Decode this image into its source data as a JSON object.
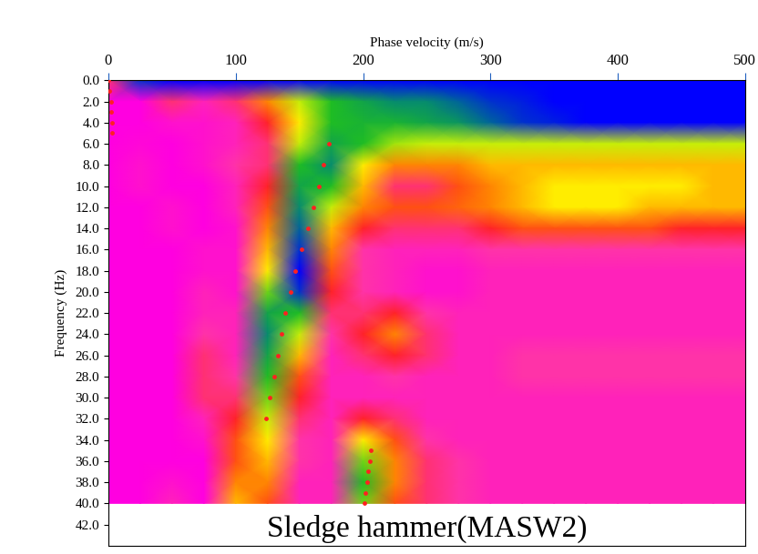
{
  "chart_data": {
    "type": "heatmap",
    "xlabel": "Phase velocity (m/s)",
    "ylabel": "Frequency (Hz)",
    "annotation": "Sledge hammer(MASW2)",
    "xlim": [
      0,
      500
    ],
    "xticks": [
      0,
      100,
      200,
      300,
      400,
      500
    ],
    "ylim": [
      44,
      0
    ],
    "yticks": [
      {
        "value": 0,
        "label": "0.0"
      },
      {
        "value": 2,
        "label": "2.0"
      },
      {
        "value": 4,
        "label": "4.0"
      },
      {
        "value": 6,
        "label": "6.0"
      },
      {
        "value": 8,
        "label": "8.0"
      },
      {
        "value": 10,
        "label": "10.0"
      },
      {
        "value": 12,
        "label": "12.0"
      },
      {
        "value": 14,
        "label": "14.0"
      },
      {
        "value": 16,
        "label": "16.0"
      },
      {
        "value": 18,
        "label": "18.0"
      },
      {
        "value": 20,
        "label": "20.0"
      },
      {
        "value": 22,
        "label": "22.0"
      },
      {
        "value": 24,
        "label": "24.0"
      },
      {
        "value": 26,
        "label": "26.0"
      },
      {
        "value": 28,
        "label": "28.0"
      },
      {
        "value": 30,
        "label": "30.0"
      },
      {
        "value": 32,
        "label": "32.0"
      },
      {
        "value": 34,
        "label": "34.0"
      },
      {
        "value": 36,
        "label": "36.0"
      },
      {
        "value": 38,
        "label": "38.0"
      },
      {
        "value": 40,
        "label": "40.0"
      },
      {
        "value": 42,
        "label": "42.0"
      }
    ],
    "x": [
      0,
      25,
      50,
      75,
      100,
      125,
      150,
      175,
      200,
      225,
      250,
      275,
      300,
      325,
      350,
      375,
      400,
      425,
      450,
      475,
      500
    ],
    "y": [
      0,
      2,
      4,
      6,
      8,
      10,
      12,
      14,
      16,
      18,
      20,
      22,
      24,
      26,
      28,
      30,
      32,
      34,
      36,
      38,
      40
    ],
    "cells": [
      [
        0.3,
        0.9,
        0.95,
        0.95,
        0.95,
        0.95,
        0.95,
        0.95,
        0.95,
        0.95,
        0.95,
        0.95,
        0.95,
        0.95,
        0.95,
        0.95,
        0.95,
        0.95,
        0.95,
        0.95,
        0.95
      ],
      [
        0.1,
        0.1,
        0.3,
        0.2,
        0.3,
        0.45,
        0.6,
        0.7,
        0.75,
        0.8,
        0.8,
        0.85,
        0.9,
        0.92,
        0.95,
        0.95,
        0.95,
        0.95,
        0.95,
        0.95,
        0.95
      ],
      [
        0.1,
        0.1,
        0.15,
        0.15,
        0.2,
        0.35,
        0.55,
        0.7,
        0.72,
        0.72,
        0.75,
        0.78,
        0.85,
        0.9,
        0.92,
        0.95,
        0.95,
        0.95,
        0.95,
        0.95,
        0.95
      ],
      [
        0.1,
        0.12,
        0.1,
        0.15,
        0.2,
        0.3,
        0.6,
        0.75,
        0.7,
        0.62,
        0.6,
        0.6,
        0.6,
        0.6,
        0.6,
        0.6,
        0.6,
        0.6,
        0.6,
        0.6,
        0.6
      ],
      [
        0.1,
        0.15,
        0.1,
        0.15,
        0.25,
        0.3,
        0.7,
        0.8,
        0.55,
        0.45,
        0.45,
        0.45,
        0.5,
        0.5,
        0.5,
        0.5,
        0.5,
        0.5,
        0.5,
        0.5,
        0.5
      ],
      [
        0.1,
        0.15,
        0.1,
        0.1,
        0.2,
        0.35,
        0.75,
        0.7,
        0.5,
        0.3,
        0.3,
        0.4,
        0.45,
        0.5,
        0.55,
        0.55,
        0.55,
        0.55,
        0.55,
        0.5,
        0.5
      ],
      [
        0.1,
        0.1,
        0.15,
        0.1,
        0.2,
        0.4,
        0.8,
        0.6,
        0.45,
        0.4,
        0.4,
        0.42,
        0.45,
        0.5,
        0.55,
        0.55,
        0.55,
        0.5,
        0.5,
        0.5,
        0.5
      ],
      [
        0.1,
        0.1,
        0.15,
        0.1,
        0.15,
        0.45,
        0.85,
        0.5,
        0.35,
        0.3,
        0.3,
        0.3,
        0.35,
        0.4,
        0.4,
        0.4,
        0.4,
        0.4,
        0.35,
        0.35,
        0.35
      ],
      [
        0.1,
        0.1,
        0.1,
        0.15,
        0.15,
        0.5,
        0.9,
        0.45,
        0.25,
        0.2,
        0.2,
        0.2,
        0.25,
        0.25,
        0.25,
        0.25,
        0.25,
        0.25,
        0.25,
        0.25,
        0.25
      ],
      [
        0.1,
        0.1,
        0.1,
        0.15,
        0.15,
        0.55,
        0.95,
        0.4,
        0.25,
        0.2,
        0.15,
        0.15,
        0.2,
        0.2,
        0.2,
        0.2,
        0.2,
        0.2,
        0.2,
        0.2,
        0.2
      ],
      [
        0.1,
        0.1,
        0.1,
        0.2,
        0.15,
        0.65,
        0.9,
        0.35,
        0.25,
        0.2,
        0.15,
        0.15,
        0.2,
        0.2,
        0.2,
        0.2,
        0.2,
        0.2,
        0.2,
        0.2,
        0.2
      ],
      [
        0.1,
        0.1,
        0.1,
        0.2,
        0.2,
        0.75,
        0.7,
        0.3,
        0.3,
        0.35,
        0.25,
        0.2,
        0.2,
        0.2,
        0.2,
        0.2,
        0.2,
        0.2,
        0.2,
        0.2,
        0.2
      ],
      [
        0.1,
        0.1,
        0.1,
        0.25,
        0.2,
        0.8,
        0.6,
        0.25,
        0.35,
        0.45,
        0.3,
        0.2,
        0.2,
        0.2,
        0.2,
        0.2,
        0.2,
        0.2,
        0.2,
        0.2,
        0.2
      ],
      [
        0.1,
        0.1,
        0.1,
        0.3,
        0.2,
        0.75,
        0.5,
        0.2,
        0.3,
        0.35,
        0.3,
        0.2,
        0.2,
        0.25,
        0.25,
        0.25,
        0.25,
        0.25,
        0.25,
        0.25,
        0.25
      ],
      [
        0.1,
        0.1,
        0.1,
        0.3,
        0.25,
        0.7,
        0.4,
        0.2,
        0.2,
        0.25,
        0.2,
        0.2,
        0.2,
        0.25,
        0.25,
        0.25,
        0.25,
        0.25,
        0.25,
        0.25,
        0.25
      ],
      [
        0.1,
        0.1,
        0.1,
        0.3,
        0.3,
        0.65,
        0.35,
        0.2,
        0.2,
        0.2,
        0.2,
        0.2,
        0.2,
        0.2,
        0.2,
        0.2,
        0.2,
        0.2,
        0.2,
        0.2,
        0.2
      ],
      [
        0.1,
        0.1,
        0.1,
        0.2,
        0.35,
        0.6,
        0.3,
        0.2,
        0.35,
        0.3,
        0.2,
        0.2,
        0.2,
        0.2,
        0.2,
        0.2,
        0.2,
        0.2,
        0.2,
        0.2,
        0.2
      ],
      [
        0.1,
        0.1,
        0.1,
        0.15,
        0.4,
        0.55,
        0.25,
        0.2,
        0.55,
        0.4,
        0.25,
        0.2,
        0.2,
        0.2,
        0.2,
        0.2,
        0.2,
        0.2,
        0.2,
        0.2,
        0.2
      ],
      [
        0.1,
        0.1,
        0.1,
        0.1,
        0.4,
        0.5,
        0.25,
        0.2,
        0.65,
        0.45,
        0.3,
        0.25,
        0.2,
        0.2,
        0.2,
        0.2,
        0.2,
        0.2,
        0.2,
        0.2,
        0.2
      ],
      [
        0.1,
        0.1,
        0.15,
        0.1,
        0.45,
        0.45,
        0.2,
        0.2,
        0.7,
        0.45,
        0.3,
        0.25,
        0.2,
        0.2,
        0.2,
        0.2,
        0.2,
        0.2,
        0.2,
        0.2,
        0.2
      ],
      [
        0.1,
        0.1,
        0.2,
        0.1,
        0.5,
        0.4,
        0.2,
        0.2,
        0.65,
        0.4,
        0.3,
        0.25,
        0.2,
        0.2,
        0.2,
        0.2,
        0.2,
        0.2,
        0.2,
        0.2,
        0.2
      ]
    ],
    "series": [
      {
        "type": "scatter",
        "color": "#ff2020",
        "marker": "dot",
        "x": [
          173,
          169,
          165,
          161,
          157,
          152,
          147,
          143,
          139,
          136,
          133,
          130,
          127,
          124
        ],
        "y": [
          6,
          8,
          10,
          12,
          14,
          16,
          18,
          20,
          22,
          24,
          26,
          28,
          30,
          32
        ]
      },
      {
        "type": "scatter",
        "color": "#ff2020",
        "marker": "dot",
        "x": [
          206,
          205,
          204,
          203,
          202,
          201
        ],
        "y": [
          35,
          36,
          37,
          38,
          39,
          40
        ]
      },
      {
        "type": "scatter",
        "color": "#ff2020",
        "marker": "dot",
        "x": [
          0,
          1,
          2,
          2,
          3,
          3
        ],
        "y": [
          0,
          1,
          2,
          3,
          4,
          5
        ]
      }
    ]
  }
}
